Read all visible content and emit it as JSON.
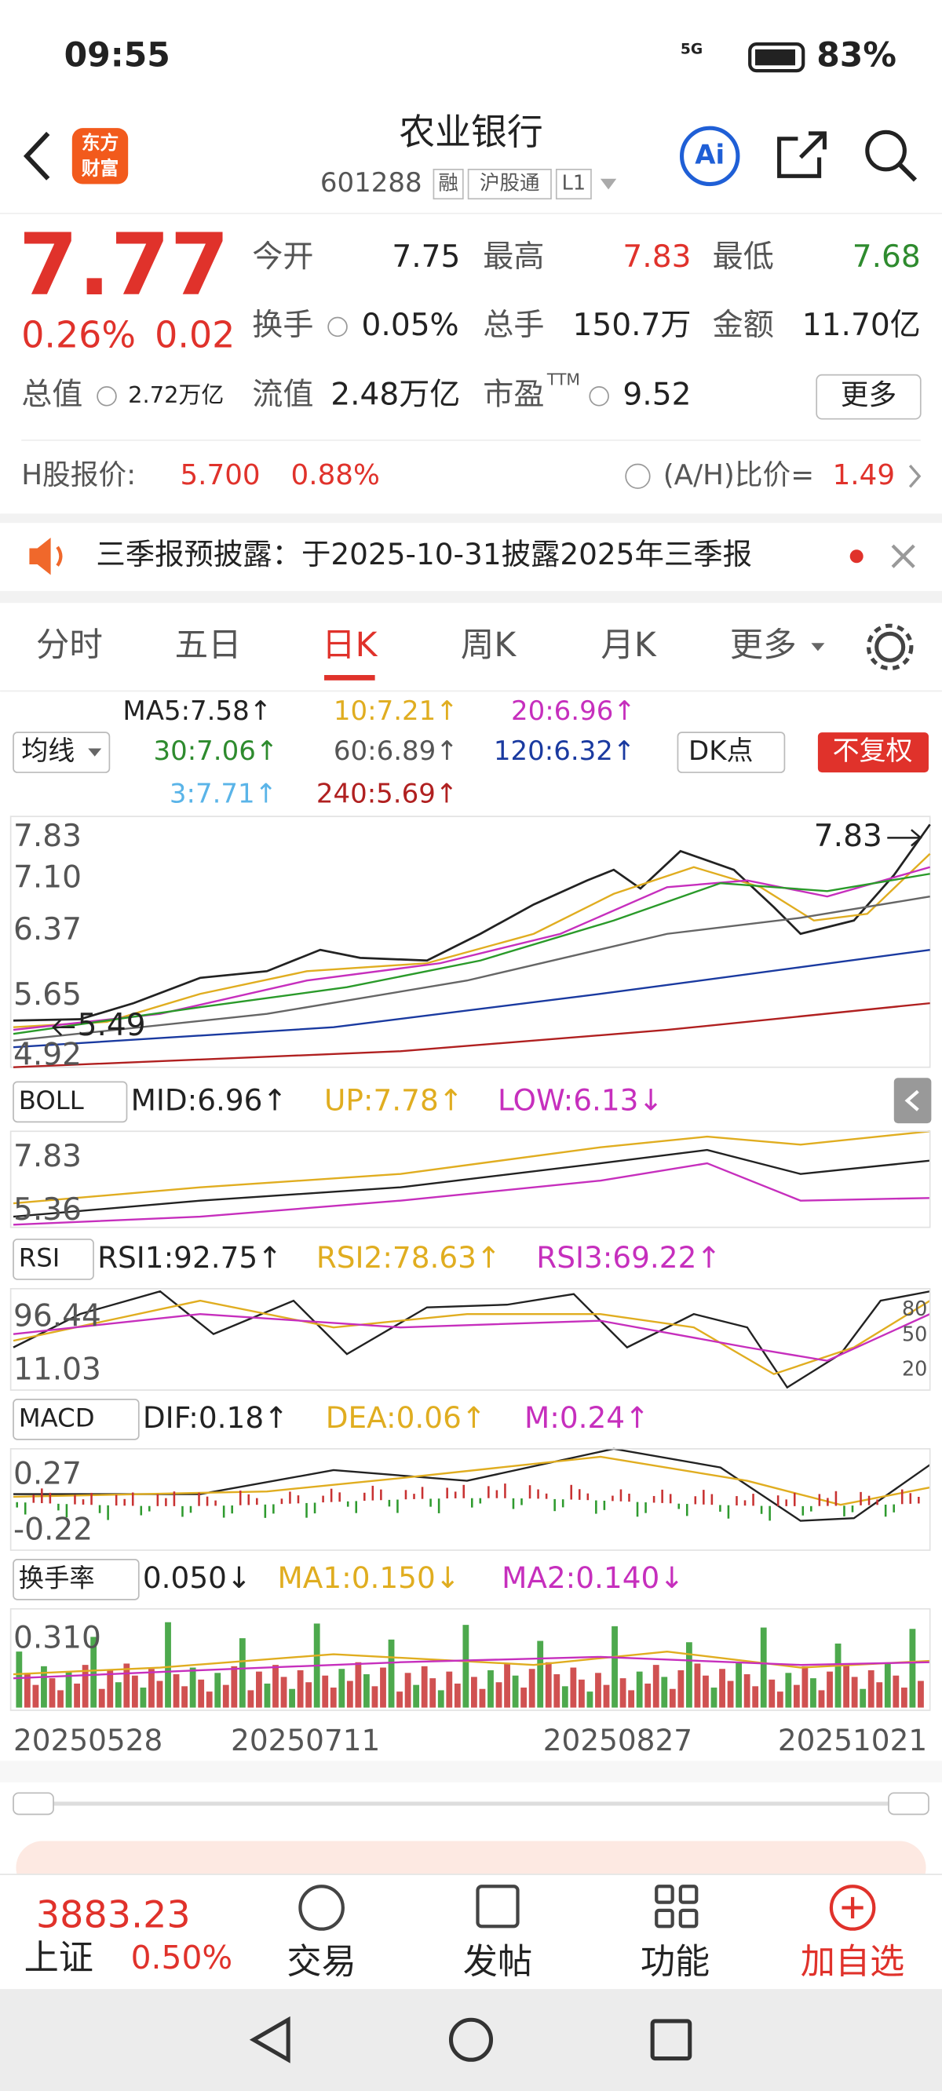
{
  "status": {
    "time": "09:55",
    "network": "5G",
    "battery": "83%"
  },
  "header": {
    "logo": [
      "东方",
      "财富"
    ],
    "title": "农业银行",
    "code": "601288",
    "tags": [
      "融",
      "沪股通",
      "L1"
    ]
  },
  "quote": {
    "price": "7.77",
    "change_pct": "0.26%",
    "change": "0.02",
    "open": {
      "label": "今开",
      "value": "7.75"
    },
    "high": {
      "label": "最高",
      "value": "7.83"
    },
    "low": {
      "label": "最低",
      "value": "7.68"
    },
    "turnover": {
      "label": "换手",
      "value": "0.05%"
    },
    "volume": {
      "label": "总手",
      "value": "150.7万"
    },
    "amount": {
      "label": "金额",
      "value": "11.70亿"
    },
    "market_cap": {
      "label": "总值",
      "value": "2.72万亿"
    },
    "float_cap": {
      "label": "流值",
      "value": "2.48万亿"
    },
    "pe": {
      "label": "市盈",
      "sup": "TTM",
      "value": "9.52"
    },
    "more": "更多"
  },
  "hshare": {
    "label": "H股报价:",
    "price": "5.700",
    "pct": "0.88%",
    "ratio_label": "(A/H)比价=",
    "ratio": "1.49"
  },
  "notice": "三季报预披露：于2025-10-31披露2025年三季报",
  "tabs": [
    "分时",
    "五日",
    "日K",
    "周K",
    "月K",
    "更多"
  ],
  "ma_legend": {
    "selector": "均线",
    "items": [
      "MA5:7.58↑",
      "10:7.21↑",
      "20:6.96↑",
      "30:7.06↑",
      "60:6.89↑",
      "120:6.32↑",
      "3:7.71↑",
      "240:5.69↑"
    ],
    "dk": "DK点",
    "adjust": "不复权"
  },
  "main_chart": {
    "yticks": [
      "7.83",
      "7.10",
      "6.37",
      "5.65",
      "4.92"
    ],
    "high_label": "7.83",
    "low_label": "5.49"
  },
  "boll": {
    "name": "BOLL",
    "items": [
      "MID:6.96↑",
      "UP:7.78↑",
      "LOW:6.13↓"
    ],
    "yticks": [
      "7.83",
      "5.36"
    ]
  },
  "rsi": {
    "name": "RSI",
    "items": [
      "RSI1:92.75↑",
      "RSI2:78.63↑",
      "RSI3:69.22↑"
    ],
    "yticks": [
      "96.44",
      "11.03"
    ],
    "levels": [
      "80",
      "50",
      "20"
    ]
  },
  "macd": {
    "name": "MACD",
    "items": [
      "DIF:0.18↑",
      "DEA:0.06↑",
      "M:0.24↑"
    ],
    "yticks": [
      "0.27",
      "-0.22"
    ]
  },
  "turnover_rate": {
    "name": "换手率",
    "items": [
      "0.050↓",
      "MA1:0.150↓",
      "MA2:0.140↓"
    ],
    "yticks": [
      "0.310"
    ]
  },
  "dates": [
    "20250528",
    "20250711",
    "20250827",
    "20251021"
  ],
  "bottom": {
    "index_value": "3883.23",
    "index_name": "上证",
    "index_pct": "0.50%",
    "nav": [
      "交易",
      "发帖",
      "功能",
      "加自选"
    ]
  }
}
